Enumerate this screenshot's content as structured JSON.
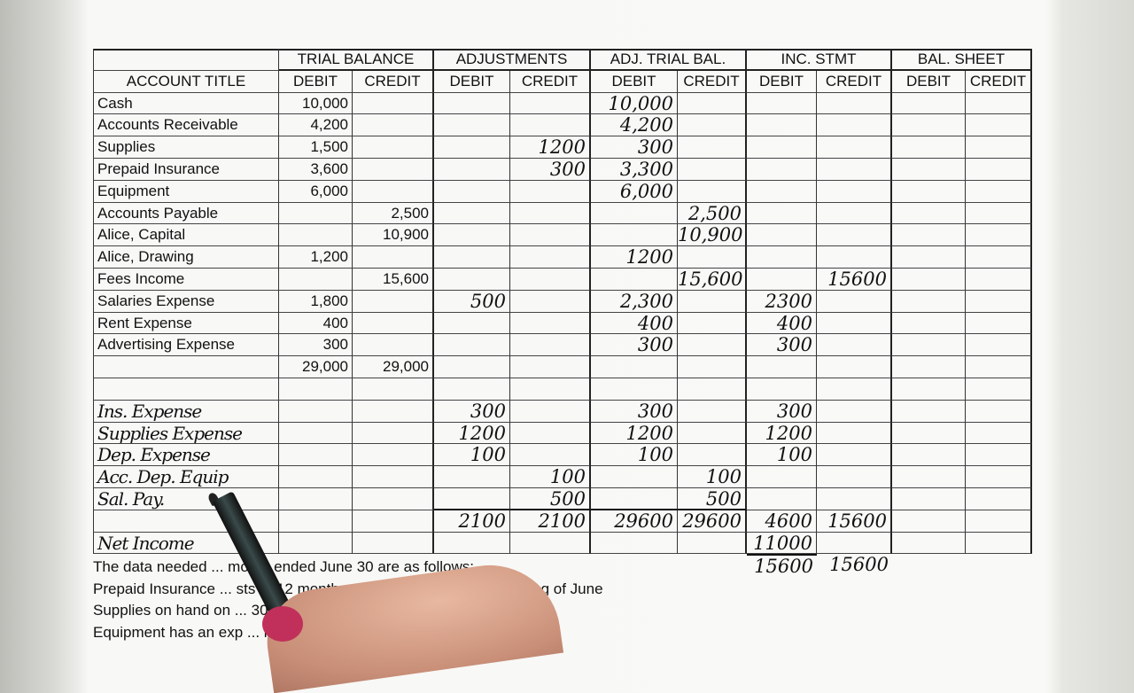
{
  "worksheet": {
    "groups": [
      "TRIAL BALANCE",
      "ADJUSTMENTS",
      "ADJ. TRIAL BAL.",
      "INC. STMT",
      "BAL. SHEET"
    ],
    "account_title_header": "ACCOUNT TITLE",
    "column_headers": [
      "DEBIT",
      "CREDIT",
      "DEBIT",
      "CREDIT",
      "DEBIT",
      "CREDIT",
      "DEBIT",
      "CREDIT",
      "DEBIT",
      "CREDIT"
    ],
    "rows": [
      {
        "title": "Cash",
        "cells": [
          "10,000",
          "",
          "",
          "",
          "10,000",
          "",
          "",
          "",
          "",
          ""
        ]
      },
      {
        "title": "Accounts Receivable",
        "cells": [
          "4,200",
          "",
          "",
          "",
          "4,200",
          "",
          "",
          "",
          "",
          ""
        ]
      },
      {
        "title": "Supplies",
        "cells": [
          "1,500",
          "",
          "",
          "1200",
          "300",
          "",
          "",
          "",
          "",
          ""
        ]
      },
      {
        "title": "Prepaid Insurance",
        "cells": [
          "3,600",
          "",
          "",
          "300",
          "3,300",
          "",
          "",
          "",
          "",
          ""
        ]
      },
      {
        "title": "Equipment",
        "cells": [
          "6,000",
          "",
          "",
          "",
          "6,000",
          "",
          "",
          "",
          "",
          ""
        ]
      },
      {
        "title": "Accounts Payable",
        "cells": [
          "",
          "2,500",
          "",
          "",
          "",
          "2,500",
          "",
          "",
          "",
          ""
        ]
      },
      {
        "title": "Alice, Capital",
        "cells": [
          "",
          "10,900",
          "",
          "",
          "",
          "10,900",
          "",
          "",
          "",
          ""
        ]
      },
      {
        "title": "Alice, Drawing",
        "cells": [
          "1,200",
          "",
          "",
          "",
          "1200",
          "",
          "",
          "",
          "",
          ""
        ]
      },
      {
        "title": "Fees Income",
        "cells": [
          "",
          "15,600",
          "",
          "",
          "",
          "15,600",
          "",
          "15600",
          "",
          ""
        ]
      },
      {
        "title": "Salaries Expense",
        "cells": [
          "1,800",
          "",
          "500",
          "",
          "2,300",
          "",
          "2300",
          "",
          "",
          ""
        ]
      },
      {
        "title": "Rent Expense",
        "cells": [
          "400",
          "",
          "",
          "",
          "400",
          "",
          "400",
          "",
          "",
          ""
        ]
      },
      {
        "title": "Advertising Expense",
        "cells": [
          "300",
          "",
          "",
          "",
          "300",
          "",
          "300",
          "",
          "",
          ""
        ]
      },
      {
        "title": "",
        "cells": [
          "29,000",
          "29,000",
          "",
          "",
          "",
          "",
          "",
          "",
          "",
          ""
        ]
      },
      {
        "title": "",
        "cells": [
          "",
          "",
          "",
          "",
          "",
          "",
          "",
          "",
          "",
          ""
        ]
      },
      {
        "title": "Ins. Expense",
        "cells": [
          "",
          "",
          "300",
          "",
          "300",
          "",
          "300",
          "",
          "",
          ""
        ]
      },
      {
        "title": "Supplies Expense",
        "cells": [
          "",
          "",
          "1200",
          "",
          "1200",
          "",
          "1200",
          "",
          "",
          ""
        ]
      },
      {
        "title": "Dep. Expense",
        "cells": [
          "",
          "",
          "100",
          "",
          "100",
          "",
          "100",
          "",
          "",
          ""
        ]
      },
      {
        "title": "Acc. Dep. Equip",
        "cells": [
          "",
          "",
          "",
          "100",
          "",
          "100",
          "",
          "",
          "",
          ""
        ]
      },
      {
        "title": "Sal. Pay.",
        "cells": [
          "",
          "",
          "",
          "500",
          "",
          "500",
          "",
          "",
          "",
          ""
        ]
      },
      {
        "title": "",
        "cells": [
          "",
          "",
          "2100",
          "2100",
          "29600",
          "29600",
          "4600",
          "15600",
          "",
          ""
        ]
      },
      {
        "title": "Net Income",
        "cells": [
          "",
          "",
          "",
          "",
          "",
          "",
          "11000",
          "",
          "",
          ""
        ]
      }
    ],
    "income_statement_totals": [
      "15600",
      "15600"
    ]
  },
  "notes": [
    "The data needed ... month ended June 30 are as follows:",
    "Prepaid Insurance ... sts of 12 months ... purchased at the beginning of June",
    "Supplies on hand on ... 30 ...",
    "Equipment has an exp ... hs)"
  ]
}
